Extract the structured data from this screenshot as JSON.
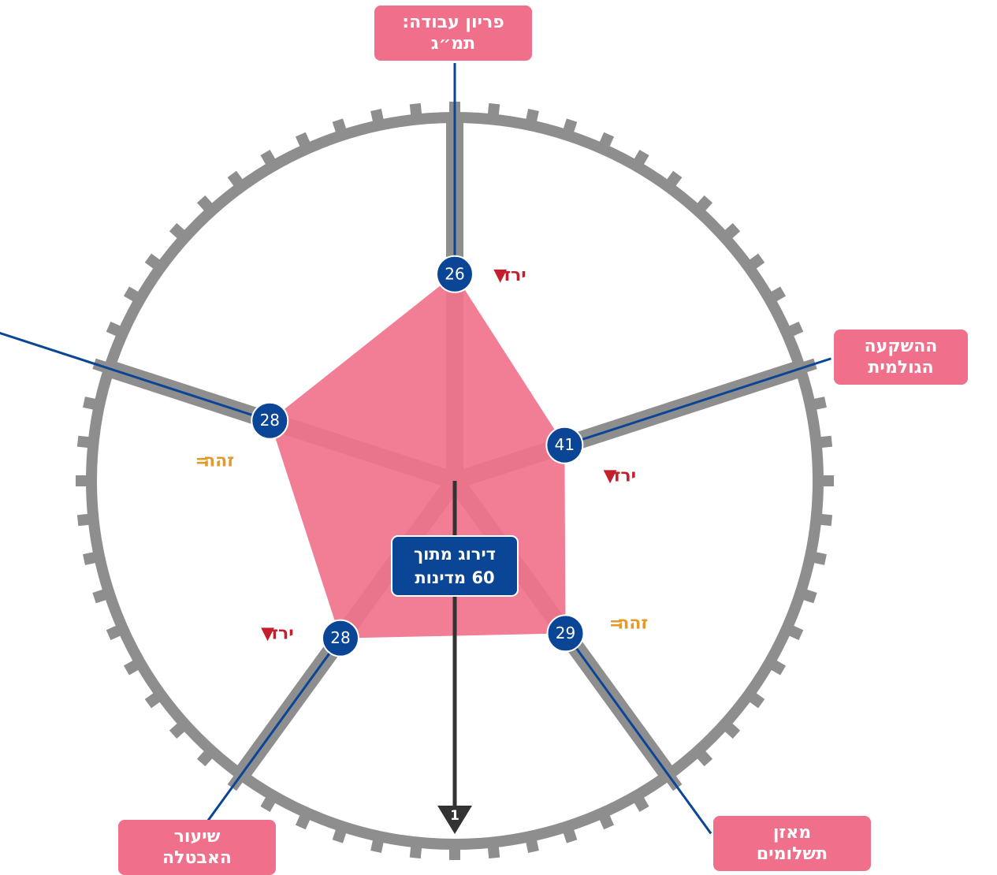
{
  "chart_data": {
    "type": "radar",
    "categories": [
      [
        "פריון עבודה:",
        "תמ״ג"
      ],
      [
        "ההשקעה",
        "הגולמית"
      ],
      [
        "מאזן",
        "תשלומים"
      ],
      [
        "שיעור",
        "האבטלה"
      ],
      null
    ],
    "values": [
      26,
      41,
      29,
      28,
      28
    ],
    "trends": [
      "ירד",
      "ירד",
      "זהה",
      "ירד",
      "זהה"
    ],
    "trend_icons": [
      "▼",
      "▼",
      "=",
      "▼",
      "="
    ],
    "trend_colors": [
      "#c3202e",
      "#c3202e",
      "#e39a2b",
      "#c3202e",
      "#e39a2b"
    ],
    "center_label": [
      "דירוג מתוך",
      "60 מדינות"
    ],
    "rlim": [
      60,
      1
    ],
    "rticks": [
      1
    ],
    "color": "#f0738c",
    "point_color": "#0b4595",
    "axis_color": "#8e8e8e",
    "label_color": "#f06f8a"
  }
}
